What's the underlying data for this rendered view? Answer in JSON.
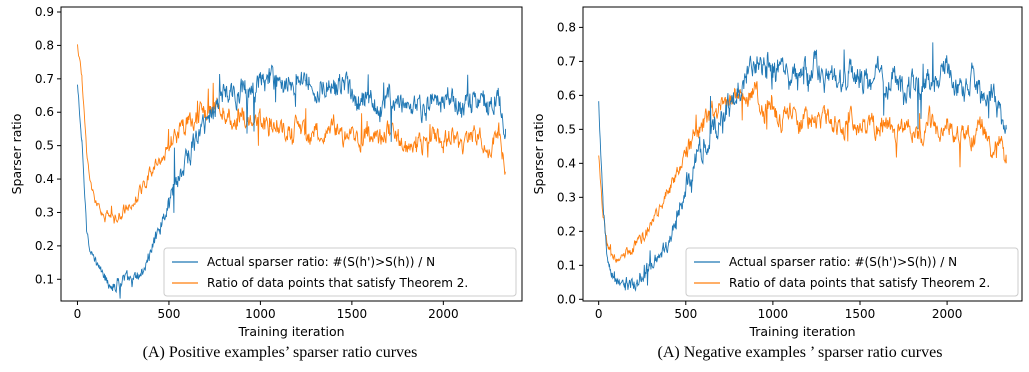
{
  "colors": {
    "series_actual": "#1f77b4",
    "series_theorem": "#ff7f0e"
  },
  "captions": {
    "left": "(A) Positive examples’ sparser ratio curves",
    "right": "(A) Negative examples ’ sparser ratio curves"
  },
  "chart_data": [
    {
      "type": "line",
      "xlabel": "Training iteration",
      "ylabel": "Sparser ratio",
      "xlim": [
        -90,
        2430
      ],
      "ylim": [
        0.035,
        0.915
      ],
      "xticks": [
        0,
        500,
        1000,
        1500,
        2000
      ],
      "yticks": [
        0.1,
        0.2,
        0.3,
        0.4,
        0.5,
        0.6,
        0.7,
        0.8,
        0.9
      ],
      "ytick_labels": [
        "0.1",
        "0.2",
        "0.3",
        "0.4",
        "0.5",
        "0.6",
        "0.7",
        "0.8",
        "0.9"
      ],
      "legend_loc": "lower right",
      "grid": false,
      "series": [
        {
          "name": "Actual sparser ratio: #(S(h')>S(h)) / N",
          "x": [
            0,
            25,
            50,
            75,
            100,
            150,
            200,
            250,
            300,
            350,
            400,
            450,
            500,
            550,
            600,
            650,
            700,
            750,
            800,
            850,
            900,
            950,
            1000,
            1050,
            1100,
            1150,
            1200,
            1250,
            1300,
            1350,
            1400,
            1450,
            1500,
            1550,
            1600,
            1650,
            1700,
            1750,
            1800,
            1850,
            1900,
            1950,
            2000,
            2050,
            2100,
            2150,
            2200,
            2250,
            2300,
            2340
          ],
          "y": [
            0.68,
            0.5,
            0.25,
            0.18,
            0.15,
            0.11,
            0.08,
            0.1,
            0.09,
            0.12,
            0.18,
            0.26,
            0.33,
            0.4,
            0.47,
            0.52,
            0.57,
            0.62,
            0.66,
            0.64,
            0.67,
            0.66,
            0.68,
            0.7,
            0.67,
            0.71,
            0.68,
            0.72,
            0.65,
            0.7,
            0.66,
            0.68,
            0.64,
            0.62,
            0.66,
            0.6,
            0.65,
            0.63,
            0.58,
            0.62,
            0.6,
            0.64,
            0.62,
            0.66,
            0.6,
            0.63,
            0.65,
            0.61,
            0.67,
            0.55
          ],
          "color": "#1f77b4"
        },
        {
          "name": "Ratio of data points that satisfy Theorem 2.",
          "x": [
            0,
            25,
            50,
            75,
            100,
            150,
            200,
            250,
            300,
            350,
            400,
            450,
            500,
            550,
            600,
            650,
            700,
            750,
            800,
            850,
            900,
            950,
            1000,
            1050,
            1100,
            1150,
            1200,
            1250,
            1300,
            1350,
            1400,
            1450,
            1500,
            1550,
            1600,
            1650,
            1700,
            1750,
            1800,
            1850,
            1900,
            1950,
            2000,
            2050,
            2100,
            2150,
            2200,
            2250,
            2300,
            2340
          ],
          "y": [
            0.8,
            0.7,
            0.48,
            0.38,
            0.33,
            0.29,
            0.28,
            0.3,
            0.33,
            0.37,
            0.42,
            0.46,
            0.5,
            0.54,
            0.57,
            0.59,
            0.6,
            0.62,
            0.61,
            0.58,
            0.6,
            0.56,
            0.58,
            0.55,
            0.57,
            0.53,
            0.56,
            0.52,
            0.55,
            0.53,
            0.56,
            0.52,
            0.55,
            0.51,
            0.54,
            0.52,
            0.55,
            0.53,
            0.49,
            0.52,
            0.5,
            0.54,
            0.51,
            0.53,
            0.5,
            0.54,
            0.52,
            0.49,
            0.53,
            0.42
          ],
          "color": "#ff7f0e"
        }
      ]
    },
    {
      "type": "line",
      "xlabel": "Training iteration",
      "ylabel": "Sparser ratio",
      "xlim": [
        -90,
        2430
      ],
      "ylim": [
        -0.005,
        0.86
      ],
      "xticks": [
        0,
        500,
        1000,
        1500,
        2000
      ],
      "yticks": [
        0.0,
        0.1,
        0.2,
        0.3,
        0.4,
        0.5,
        0.6,
        0.7,
        0.8
      ],
      "ytick_labels": [
        "0.0",
        "0.1",
        "0.2",
        "0.3",
        "0.4",
        "0.5",
        "0.6",
        "0.7",
        "0.8"
      ],
      "legend_loc": "lower right",
      "grid": false,
      "series": [
        {
          "name": "Actual sparser ratio: #(S(h')>S(h)) / N",
          "x": [
            0,
            25,
            50,
            75,
            100,
            150,
            200,
            250,
            300,
            350,
            400,
            450,
            500,
            550,
            600,
            650,
            700,
            750,
            800,
            850,
            900,
            950,
            1000,
            1050,
            1100,
            1150,
            1200,
            1250,
            1300,
            1350,
            1400,
            1450,
            1500,
            1550,
            1600,
            1650,
            1700,
            1750,
            1800,
            1850,
            1900,
            1950,
            2000,
            2050,
            2100,
            2150,
            2200,
            2250,
            2300,
            2340
          ],
          "y": [
            0.58,
            0.28,
            0.12,
            0.07,
            0.05,
            0.04,
            0.05,
            0.07,
            0.09,
            0.12,
            0.17,
            0.24,
            0.32,
            0.4,
            0.46,
            0.5,
            0.53,
            0.57,
            0.62,
            0.66,
            0.7,
            0.68,
            0.66,
            0.69,
            0.64,
            0.67,
            0.65,
            0.7,
            0.64,
            0.66,
            0.62,
            0.68,
            0.65,
            0.63,
            0.67,
            0.62,
            0.66,
            0.6,
            0.64,
            0.62,
            0.66,
            0.63,
            0.7,
            0.64,
            0.61,
            0.66,
            0.59,
            0.6,
            0.56,
            0.5
          ],
          "color": "#1f77b4"
        },
        {
          "name": "Ratio of data points that satisfy Theorem 2.",
          "x": [
            0,
            25,
            50,
            75,
            100,
            150,
            200,
            250,
            300,
            350,
            400,
            450,
            500,
            550,
            600,
            650,
            700,
            750,
            800,
            850,
            900,
            950,
            1000,
            1050,
            1100,
            1150,
            1200,
            1250,
            1300,
            1350,
            1400,
            1450,
            1500,
            1550,
            1600,
            1650,
            1700,
            1750,
            1800,
            1850,
            1900,
            1950,
            2000,
            2050,
            2100,
            2150,
            2200,
            2250,
            2300,
            2340
          ],
          "y": [
            0.42,
            0.25,
            0.16,
            0.13,
            0.12,
            0.13,
            0.15,
            0.18,
            0.22,
            0.27,
            0.32,
            0.37,
            0.43,
            0.48,
            0.52,
            0.55,
            0.57,
            0.59,
            0.6,
            0.58,
            0.62,
            0.55,
            0.57,
            0.52,
            0.56,
            0.5,
            0.54,
            0.51,
            0.55,
            0.52,
            0.5,
            0.54,
            0.49,
            0.53,
            0.5,
            0.54,
            0.48,
            0.52,
            0.5,
            0.47,
            0.53,
            0.49,
            0.52,
            0.46,
            0.5,
            0.47,
            0.51,
            0.45,
            0.48,
            0.4
          ],
          "color": "#ff7f0e"
        }
      ]
    }
  ]
}
